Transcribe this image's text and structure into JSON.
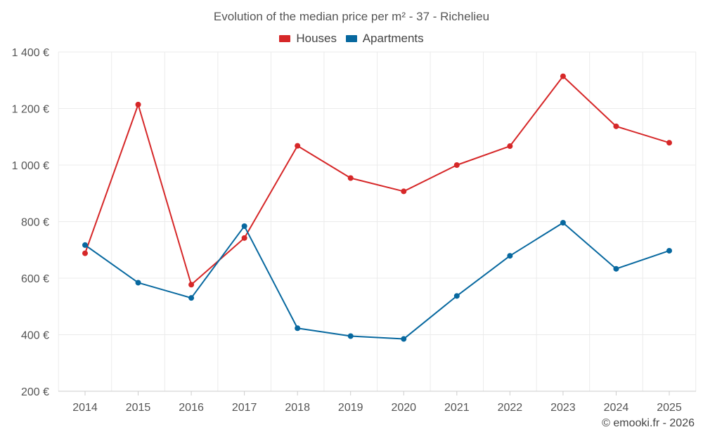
{
  "chart_data": {
    "type": "line",
    "title": "Evolution of the median price per m² - 37 - Richelieu",
    "categories": [
      "2014",
      "2015",
      "2016",
      "2017",
      "2018",
      "2019",
      "2020",
      "2021",
      "2022",
      "2023",
      "2024",
      "2025"
    ],
    "series": [
      {
        "name": "Houses",
        "color": "#d62728",
        "values": [
          688,
          1214,
          577,
          742,
          1068,
          954,
          907,
          1000,
          1067,
          1314,
          1137,
          1079
        ]
      },
      {
        "name": "Apartments",
        "color": "#07689f",
        "values": [
          717,
          584,
          530,
          784,
          423,
          395,
          385,
          537,
          679,
          796,
          633,
          697
        ]
      }
    ],
    "ylim": [
      200,
      1400
    ],
    "yticks": [
      200,
      400,
      600,
      800,
      1000,
      1200,
      1400
    ],
    "ytick_labels": [
      "200 €",
      "400 €",
      "600 €",
      "800 €",
      "1 000 €",
      "1 200 €",
      "1 400 €"
    ],
    "xlabel": "",
    "ylabel": "",
    "grid": true,
    "legend_position": "top-center"
  },
  "credit": "© emooki.fr - 2026"
}
